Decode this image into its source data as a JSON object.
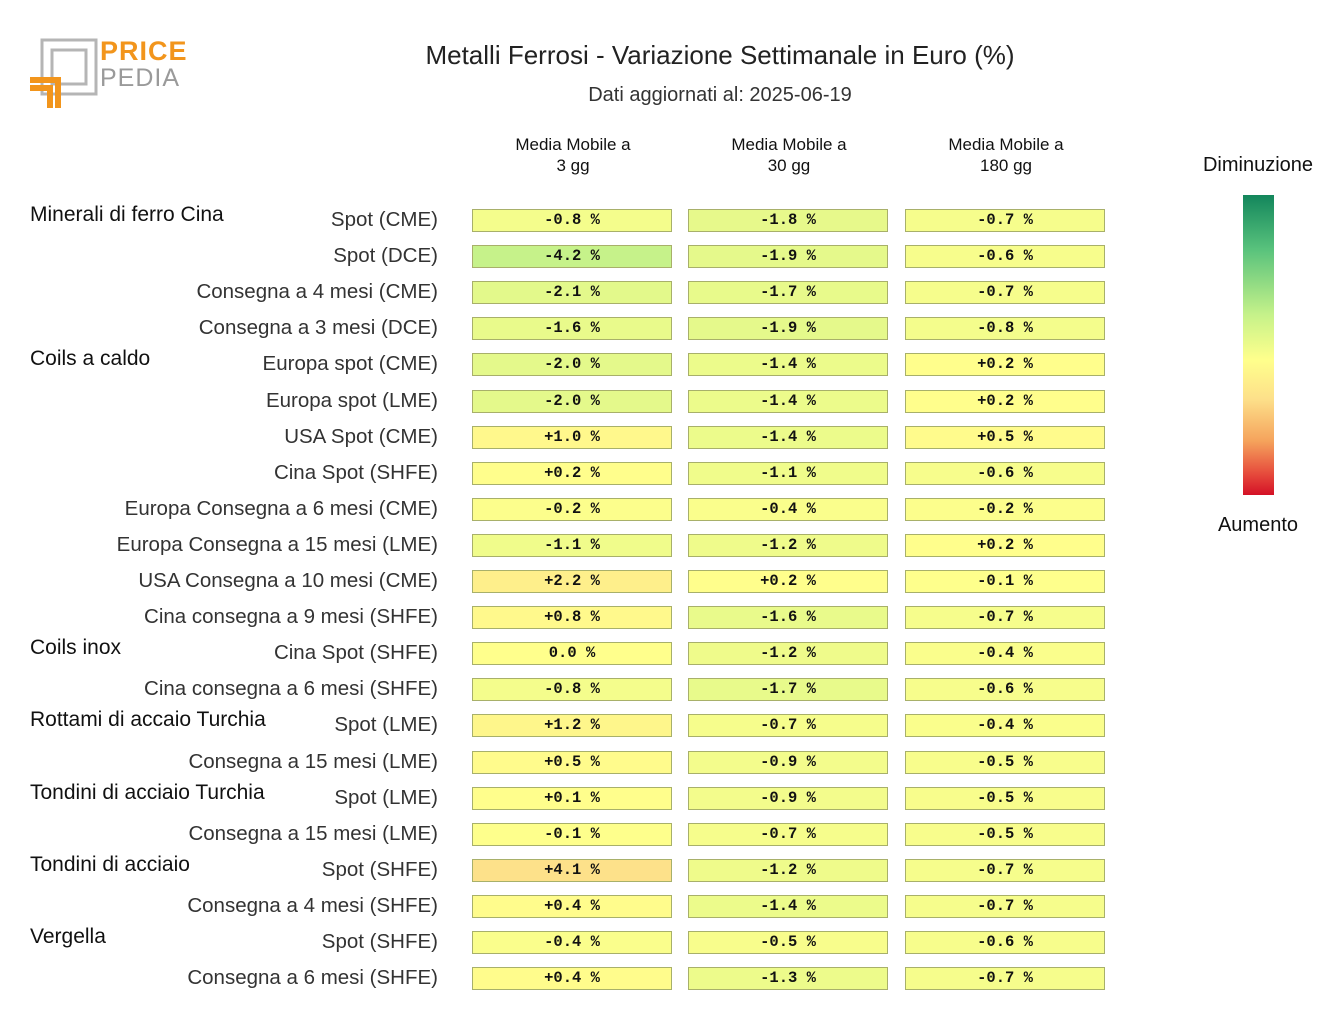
{
  "logo": {
    "line1": "PRICE",
    "line2": "PEDIA"
  },
  "title": "Metalli Ferrosi - Variazione Settimanale in Euro (%)",
  "subtitle": "Dati aggiornati al: 2025-06-19",
  "legend": {
    "top": "Diminuzione",
    "bottom": "Aumento"
  },
  "colors": {
    "strong_decrease": "#13865c",
    "neutral": "#ffff8c",
    "strong_increase": "#d41126"
  },
  "chart_data": {
    "type": "heatmap",
    "columns": [
      "Media Mobile a\n3 gg",
      "Media Mobile a\n30 gg",
      "Media Mobile a\n180 gg"
    ],
    "groups": [
      {
        "name": "Minerali di ferro Cina",
        "start_row": 0
      },
      {
        "name": "Coils a caldo",
        "start_row": 4
      },
      {
        "name": "Coils inox",
        "start_row": 12
      },
      {
        "name": "Rottami di accaio Turchia",
        "start_row": 14
      },
      {
        "name": "Tondini di acciaio Turchia",
        "start_row": 16
      },
      {
        "name": "Tondini di acciaio",
        "start_row": 18
      },
      {
        "name": "Vergella",
        "start_row": 20
      }
    ],
    "rows": [
      {
        "label": "Spot (CME)",
        "values": [
          -0.8,
          -1.8,
          -0.7
        ],
        "display": [
          "-0.8 %",
          "-1.8 %",
          "-0.7 %"
        ]
      },
      {
        "label": "Spot (DCE)",
        "values": [
          -4.2,
          -1.9,
          -0.6
        ],
        "display": [
          "-4.2 %",
          "-1.9 %",
          "-0.6 %"
        ]
      },
      {
        "label": "Consegna a 4 mesi (CME)",
        "values": [
          -2.1,
          -1.7,
          -0.7
        ],
        "display": [
          "-2.1 %",
          "-1.7 %",
          "-0.7 %"
        ]
      },
      {
        "label": "Consegna a 3 mesi (DCE)",
        "values": [
          -1.6,
          -1.9,
          -0.8
        ],
        "display": [
          "-1.6 %",
          "-1.9 %",
          "-0.8 %"
        ]
      },
      {
        "label": "Europa spot (CME)",
        "values": [
          -2.0,
          -1.4,
          0.2
        ],
        "display": [
          "-2.0 %",
          "-1.4 %",
          "+0.2 %"
        ]
      },
      {
        "label": "Europa spot (LME)",
        "values": [
          -2.0,
          -1.4,
          0.2
        ],
        "display": [
          "-2.0 %",
          "-1.4 %",
          "+0.2 %"
        ]
      },
      {
        "label": "USA Spot (CME)",
        "values": [
          1.0,
          -1.4,
          0.5
        ],
        "display": [
          "+1.0 %",
          "-1.4 %",
          "+0.5 %"
        ]
      },
      {
        "label": "Cina Spot (SHFE)",
        "values": [
          0.2,
          -1.1,
          -0.6
        ],
        "display": [
          "+0.2 %",
          "-1.1 %",
          "-0.6 %"
        ]
      },
      {
        "label": "Europa Consegna a 6 mesi (CME)",
        "values": [
          -0.2,
          -0.4,
          -0.2
        ],
        "display": [
          "-0.2 %",
          "-0.4 %",
          "-0.2 %"
        ]
      },
      {
        "label": "Europa Consegna a 15 mesi (LME)",
        "values": [
          -1.1,
          -1.2,
          0.2
        ],
        "display": [
          "-1.1 %",
          "-1.2 %",
          "+0.2 %"
        ]
      },
      {
        "label": "USA Consegna a 10 mesi (CME)",
        "values": [
          2.2,
          0.2,
          -0.1
        ],
        "display": [
          "+2.2 %",
          "+0.2 %",
          "-0.1 %"
        ]
      },
      {
        "label": "Cina consegna a 9 mesi (SHFE)",
        "values": [
          0.8,
          -1.6,
          -0.7
        ],
        "display": [
          "+0.8 %",
          "-1.6 %",
          "-0.7 %"
        ]
      },
      {
        "label": "Cina Spot (SHFE)",
        "values": [
          0.0,
          -1.2,
          -0.4
        ],
        "display": [
          "0.0 %",
          "-1.2 %",
          "-0.4 %"
        ]
      },
      {
        "label": "Cina consegna a 6 mesi (SHFE)",
        "values": [
          -0.8,
          -1.7,
          -0.6
        ],
        "display": [
          "-0.8 %",
          "-1.7 %",
          "-0.6 %"
        ]
      },
      {
        "label": "Spot (LME)",
        "values": [
          1.2,
          -0.7,
          -0.4
        ],
        "display": [
          "+1.2 %",
          "-0.7 %",
          "-0.4 %"
        ]
      },
      {
        "label": "Consegna a 15 mesi (LME)",
        "values": [
          0.5,
          -0.9,
          -0.5
        ],
        "display": [
          "+0.5 %",
          "-0.9 %",
          "-0.5 %"
        ]
      },
      {
        "label": "Spot (LME)",
        "values": [
          0.1,
          -0.9,
          -0.5
        ],
        "display": [
          "+0.1 %",
          "-0.9 %",
          "-0.5 %"
        ]
      },
      {
        "label": "Consegna a 15 mesi (LME)",
        "values": [
          -0.1,
          -0.7,
          -0.5
        ],
        "display": [
          "-0.1 %",
          "-0.7 %",
          "-0.5 %"
        ]
      },
      {
        "label": "Spot (SHFE)",
        "values": [
          4.1,
          -1.2,
          -0.7
        ],
        "display": [
          "+4.1 %",
          "-1.2 %",
          "-0.7 %"
        ]
      },
      {
        "label": "Consegna a 4 mesi (SHFE)",
        "values": [
          0.4,
          -1.4,
          -0.7
        ],
        "display": [
          "+0.4 %",
          "-1.4 %",
          "-0.7 %"
        ]
      },
      {
        "label": "Spot (SHFE)",
        "values": [
          -0.4,
          -0.5,
          -0.6
        ],
        "display": [
          "-0.4 %",
          "-0.5 %",
          "-0.6 %"
        ]
      },
      {
        "label": "Consegna a 6 mesi (SHFE)",
        "values": [
          0.4,
          -1.3,
          -0.7
        ],
        "display": [
          "+0.4 %",
          "-1.3 %",
          "-0.7 %"
        ]
      }
    ]
  }
}
